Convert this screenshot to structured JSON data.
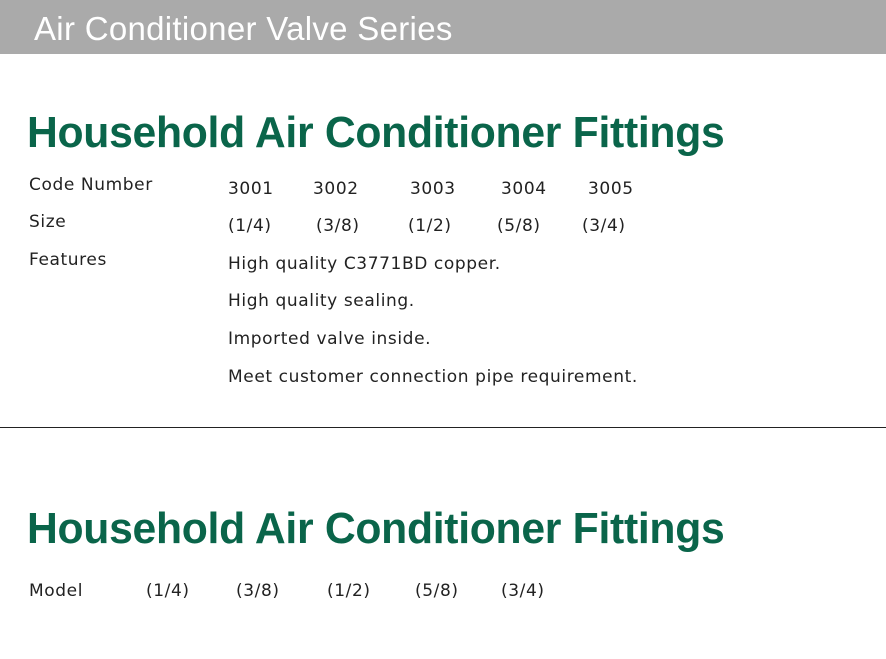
{
  "banner": {
    "title": "Air Conditioner Valve Series"
  },
  "section1": {
    "title": "Household Air Conditioner Fittings",
    "code_label": "Code Number",
    "codes": [
      "3001",
      "3002",
      "3003",
      "3004",
      "3005"
    ],
    "size_label": "Size",
    "sizes": [
      "(1/4)",
      "(3/8)",
      "(1/2)",
      "(5/8)",
      "(3/4)"
    ],
    "features_label": "Features",
    "features": [
      "High quality C3771BD copper.",
      "High quality  sealing.",
      "Imported valve inside.",
      "Meet customer connection pipe requirement."
    ]
  },
  "section2": {
    "title": "Household Air Conditioner Fittings",
    "model_label": "Model",
    "models": [
      "(1/4)",
      "(3/8)",
      "(1/2)",
      "(5/8)",
      "(3/4)"
    ]
  },
  "colors": {
    "banner": "#aaaaaa",
    "heading": "#0a654a"
  }
}
